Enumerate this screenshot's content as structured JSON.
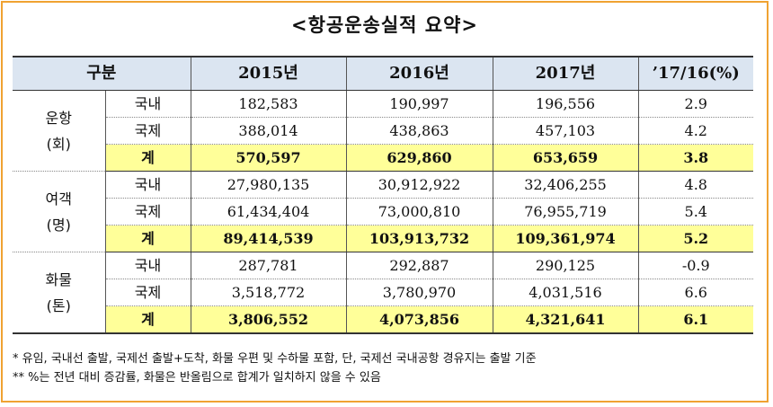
{
  "title": "<항공운송실적 요약>",
  "header": {
    "category": "구분",
    "y2015": "2015년",
    "y2016": "2016년",
    "y2017": "2017년",
    "change": "’17/16(%)"
  },
  "groups": [
    {
      "label_line1": "운항",
      "label_line2": "(회)",
      "rows": [
        {
          "type": "국내",
          "y2015": "182,583",
          "y2016": "190,997",
          "y2017": "196,556",
          "change": "2.9"
        },
        {
          "type": "국제",
          "y2015": "388,014",
          "y2016": "438,863",
          "y2017": "457,103",
          "change": "4.2"
        },
        {
          "type": "계",
          "y2015": "570,597",
          "y2016": "629,860",
          "y2017": "653,659",
          "change": "3.8"
        }
      ]
    },
    {
      "label_line1": "여객",
      "label_line2": "(명)",
      "rows": [
        {
          "type": "국내",
          "y2015": "27,980,135",
          "y2016": "30,912,922",
          "y2017": "32,406,255",
          "change": "4.8"
        },
        {
          "type": "국제",
          "y2015": "61,434,404",
          "y2016": "73,000,810",
          "y2017": "76,955,719",
          "change": "5.4"
        },
        {
          "type": "계",
          "y2015": "89,414,539",
          "y2016": "103,913,732",
          "y2017": "109,361,974",
          "change": "5.2"
        }
      ]
    },
    {
      "label_line1": "화물",
      "label_line2": "(톤)",
      "rows": [
        {
          "type": "국내",
          "y2015": "287,781",
          "y2016": "292,887",
          "y2017": "290,125",
          "change": "-0.9"
        },
        {
          "type": "국제",
          "y2015": "3,518,772",
          "y2016": "3,780,970",
          "y2017": "4,031,516",
          "change": "6.6"
        },
        {
          "type": "계",
          "y2015": "3,806,552",
          "y2016": "4,073,856",
          "y2017": "4,321,641",
          "change": "6.1"
        }
      ]
    }
  ],
  "notes": [
    "* 유임, 국내선 출발, 국제선 출발+도착, 화물 우편 및 수하물 포함, 단, 국제선 국내공항 경유지는 출발 기준",
    "** %는 전년 대비 증감률, 화물은 반올림으로 합계가 일치하지 않을 수 있음"
  ],
  "colors": {
    "frame": "#f0a232",
    "header_bg": "#dbe5f1",
    "total_bg": "#ffff99"
  }
}
